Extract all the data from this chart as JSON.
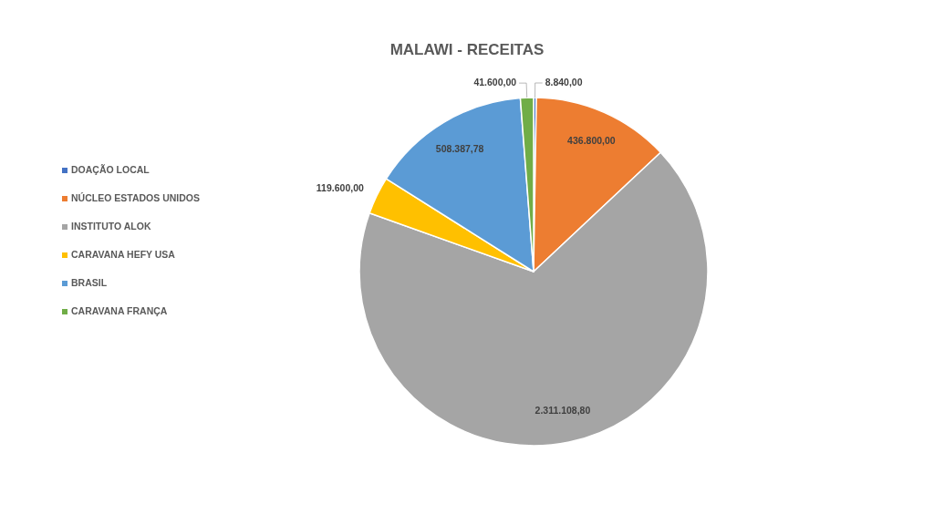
{
  "chart_data": {
    "type": "pie",
    "title": "MALAWI - RECEITAS",
    "categories": [
      "DOAÇÃO LOCAL",
      "NÚCLEO ESTADOS UNIDOS",
      "INSTITUTO ALOK",
      "CARAVANA HEFY USA",
      "BRASIL",
      "CARAVANA FRANÇA"
    ],
    "values": [
      8840,
      436800,
      2311108.8,
      119600,
      508387.78,
      41600
    ],
    "colors": [
      "#4472c4",
      "#ed7d31",
      "#a5a5a5",
      "#ffc000",
      "#5b9bd5",
      "#70ad47"
    ],
    "value_labels": [
      "8.840,00",
      "436.800,00",
      "2.311.108,80",
      "119.600,00",
      "508.387,78",
      "41.600,00"
    ],
    "legend": "left"
  }
}
